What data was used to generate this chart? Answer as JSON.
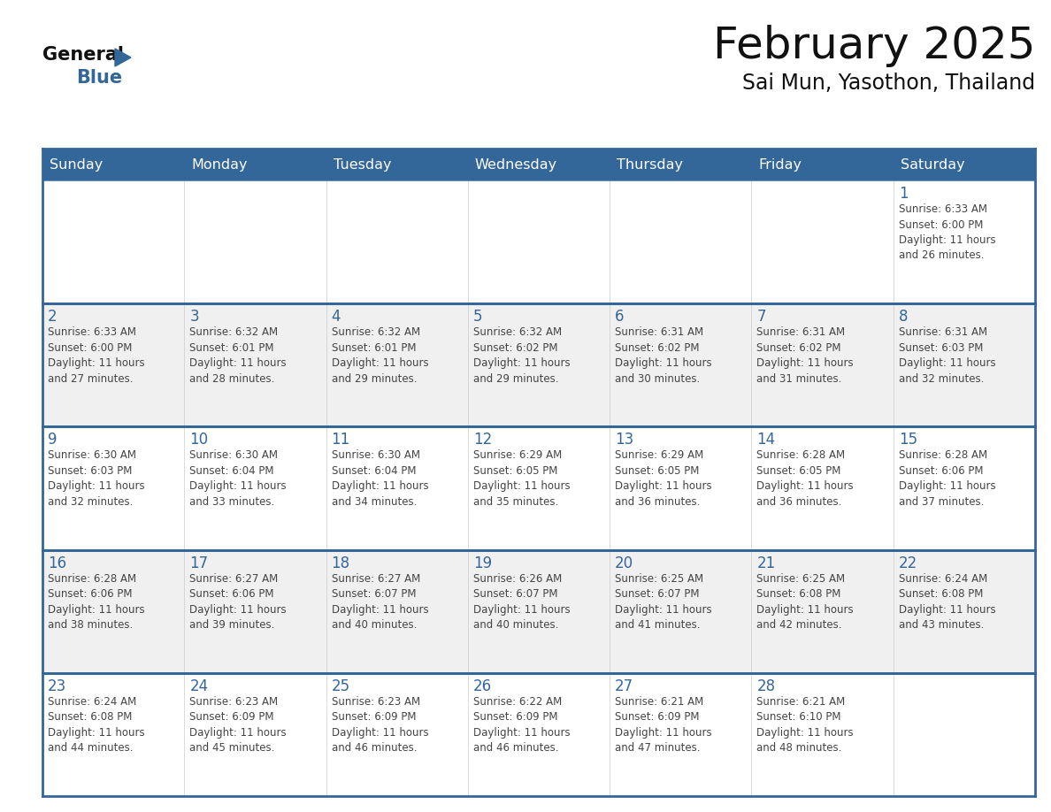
{
  "title": "February 2025",
  "subtitle": "Sai Mun, Yasothon, Thailand",
  "days_of_week": [
    "Sunday",
    "Monday",
    "Tuesday",
    "Wednesday",
    "Thursday",
    "Friday",
    "Saturday"
  ],
  "header_bg": "#336699",
  "header_text": "#FFFFFF",
  "cell_bg_white": "#FFFFFF",
  "cell_bg_gray": "#F0F0F0",
  "border_color": "#336699",
  "day_number_color": "#336699",
  "text_color": "#444444",
  "calendar": [
    [
      null,
      null,
      null,
      null,
      null,
      null,
      {
        "day": "1",
        "sunrise": "6:33 AM",
        "sunset": "6:00 PM",
        "hours": "11 hours",
        "mins": "26 minutes."
      }
    ],
    [
      {
        "day": "2",
        "sunrise": "6:33 AM",
        "sunset": "6:00 PM",
        "hours": "11 hours",
        "mins": "27 minutes."
      },
      {
        "day": "3",
        "sunrise": "6:32 AM",
        "sunset": "6:01 PM",
        "hours": "11 hours",
        "mins": "28 minutes."
      },
      {
        "day": "4",
        "sunrise": "6:32 AM",
        "sunset": "6:01 PM",
        "hours": "11 hours",
        "mins": "29 minutes."
      },
      {
        "day": "5",
        "sunrise": "6:32 AM",
        "sunset": "6:02 PM",
        "hours": "11 hours",
        "mins": "29 minutes."
      },
      {
        "day": "6",
        "sunrise": "6:31 AM",
        "sunset": "6:02 PM",
        "hours": "11 hours",
        "mins": "30 minutes."
      },
      {
        "day": "7",
        "sunrise": "6:31 AM",
        "sunset": "6:02 PM",
        "hours": "11 hours",
        "mins": "31 minutes."
      },
      {
        "day": "8",
        "sunrise": "6:31 AM",
        "sunset": "6:03 PM",
        "hours": "11 hours",
        "mins": "32 minutes."
      }
    ],
    [
      {
        "day": "9",
        "sunrise": "6:30 AM",
        "sunset": "6:03 PM",
        "hours": "11 hours",
        "mins": "32 minutes."
      },
      {
        "day": "10",
        "sunrise": "6:30 AM",
        "sunset": "6:04 PM",
        "hours": "11 hours",
        "mins": "33 minutes."
      },
      {
        "day": "11",
        "sunrise": "6:30 AM",
        "sunset": "6:04 PM",
        "hours": "11 hours",
        "mins": "34 minutes."
      },
      {
        "day": "12",
        "sunrise": "6:29 AM",
        "sunset": "6:05 PM",
        "hours": "11 hours",
        "mins": "35 minutes."
      },
      {
        "day": "13",
        "sunrise": "6:29 AM",
        "sunset": "6:05 PM",
        "hours": "11 hours",
        "mins": "36 minutes."
      },
      {
        "day": "14",
        "sunrise": "6:28 AM",
        "sunset": "6:05 PM",
        "hours": "11 hours",
        "mins": "36 minutes."
      },
      {
        "day": "15",
        "sunrise": "6:28 AM",
        "sunset": "6:06 PM",
        "hours": "11 hours",
        "mins": "37 minutes."
      }
    ],
    [
      {
        "day": "16",
        "sunrise": "6:28 AM",
        "sunset": "6:06 PM",
        "hours": "11 hours",
        "mins": "38 minutes."
      },
      {
        "day": "17",
        "sunrise": "6:27 AM",
        "sunset": "6:06 PM",
        "hours": "11 hours",
        "mins": "39 minutes."
      },
      {
        "day": "18",
        "sunrise": "6:27 AM",
        "sunset": "6:07 PM",
        "hours": "11 hours",
        "mins": "40 minutes."
      },
      {
        "day": "19",
        "sunrise": "6:26 AM",
        "sunset": "6:07 PM",
        "hours": "11 hours",
        "mins": "40 minutes."
      },
      {
        "day": "20",
        "sunrise": "6:25 AM",
        "sunset": "6:07 PM",
        "hours": "11 hours",
        "mins": "41 minutes."
      },
      {
        "day": "21",
        "sunrise": "6:25 AM",
        "sunset": "6:08 PM",
        "hours": "11 hours",
        "mins": "42 minutes."
      },
      {
        "day": "22",
        "sunrise": "6:24 AM",
        "sunset": "6:08 PM",
        "hours": "11 hours",
        "mins": "43 minutes."
      }
    ],
    [
      {
        "day": "23",
        "sunrise": "6:24 AM",
        "sunset": "6:08 PM",
        "hours": "11 hours",
        "mins": "44 minutes."
      },
      {
        "day": "24",
        "sunrise": "6:23 AM",
        "sunset": "6:09 PM",
        "hours": "11 hours",
        "mins": "45 minutes."
      },
      {
        "day": "25",
        "sunrise": "6:23 AM",
        "sunset": "6:09 PM",
        "hours": "11 hours",
        "mins": "46 minutes."
      },
      {
        "day": "26",
        "sunrise": "6:22 AM",
        "sunset": "6:09 PM",
        "hours": "11 hours",
        "mins": "46 minutes."
      },
      {
        "day": "27",
        "sunrise": "6:21 AM",
        "sunset": "6:09 PM",
        "hours": "11 hours",
        "mins": "47 minutes."
      },
      {
        "day": "28",
        "sunrise": "6:21 AM",
        "sunset": "6:10 PM",
        "hours": "11 hours",
        "mins": "48 minutes."
      },
      null
    ]
  ]
}
